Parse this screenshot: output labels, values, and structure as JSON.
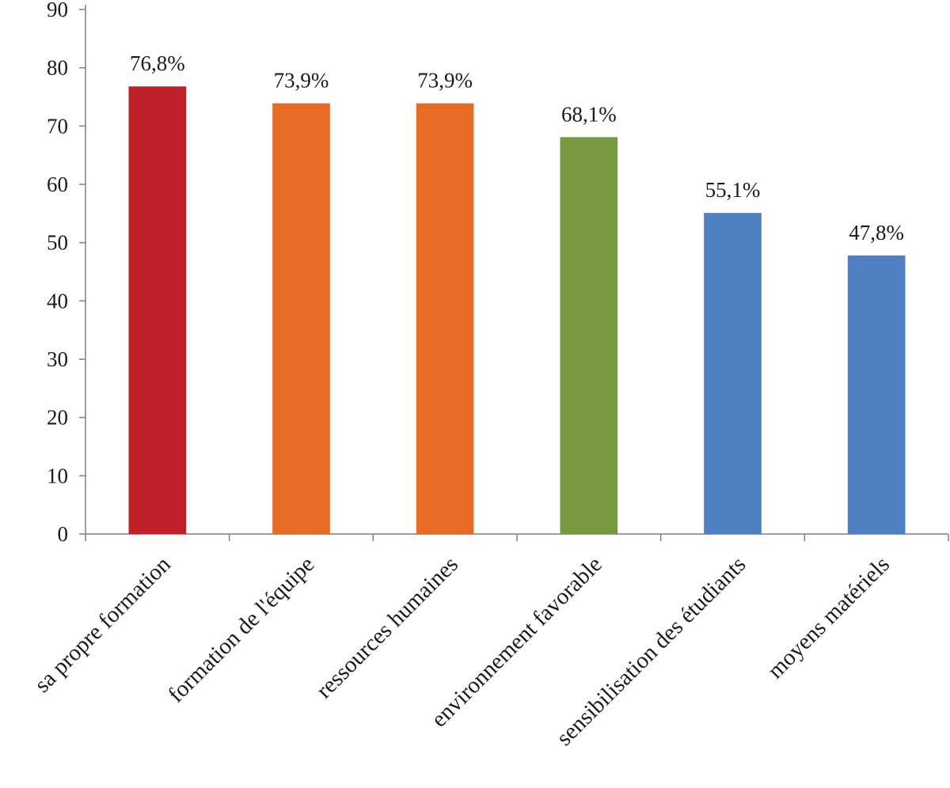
{
  "chart_data": {
    "type": "bar",
    "title": "",
    "xlabel": "",
    "ylabel": "",
    "ylim": [
      0,
      90
    ],
    "yticks": [
      0,
      10,
      20,
      30,
      40,
      50,
      60,
      70,
      80,
      90
    ],
    "grid": false,
    "legend": "none",
    "categories": [
      "sa propre formation",
      "formation de l'équipe",
      "ressources humaines",
      "environnement favorable",
      "sensibilisation des étudiants",
      "moyens matériels"
    ],
    "values": [
      76.8,
      73.9,
      73.9,
      68.1,
      55.1,
      47.8
    ],
    "data_labels": [
      "76,8%",
      "73,9%",
      "73,9%",
      "68,1%",
      "55,1%",
      "47,8%"
    ],
    "colors": [
      "#c0202a",
      "#e66c26",
      "#e66c26",
      "#779a3e",
      "#4f80c1",
      "#4f80c1"
    ]
  }
}
